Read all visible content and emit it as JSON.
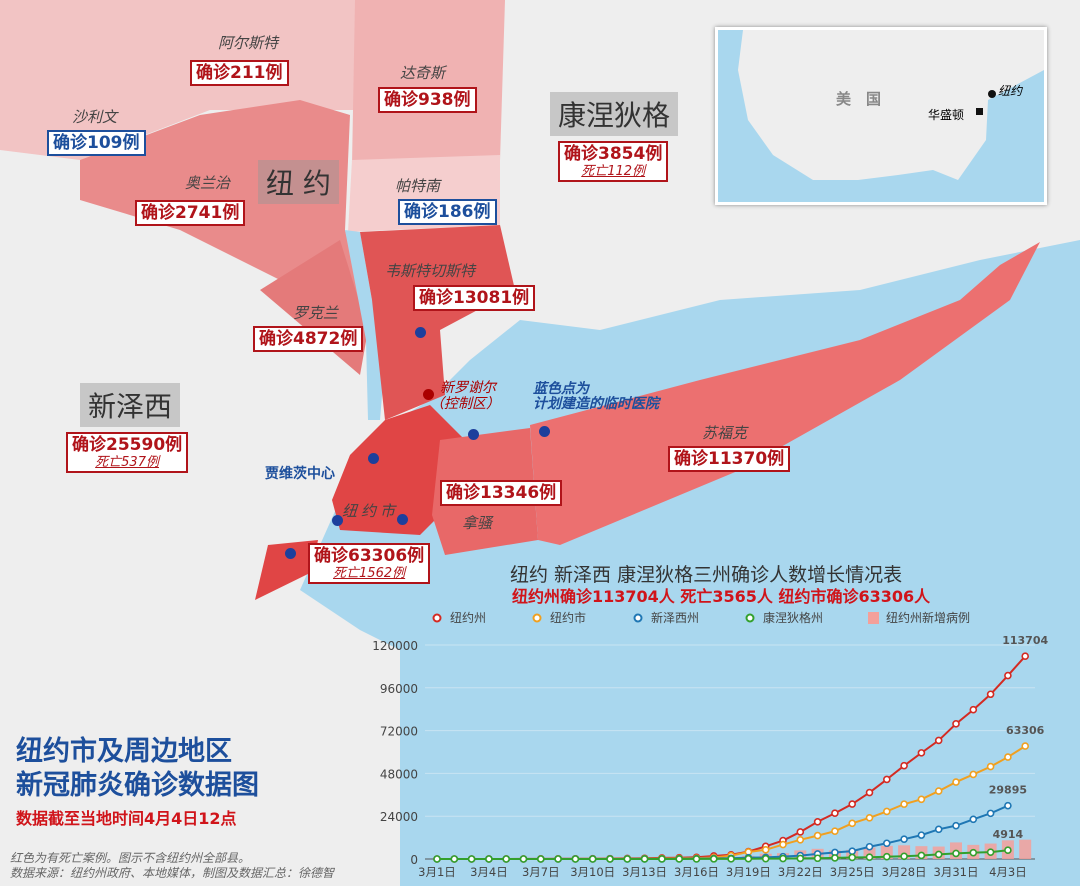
{
  "colors": {
    "water": "#a9d7ee",
    "land": "#eeeeee",
    "deaths_red": "#b0141a",
    "no_death_blue": "#1d4f9c"
  },
  "states": {
    "ny": "纽 约",
    "nj": "新泽西",
    "ct": "康涅狄格"
  },
  "counties": [
    {
      "name": "阿尔斯特",
      "cases": "确诊211例",
      "color": "red"
    },
    {
      "name": "达奇斯",
      "cases": "确诊938例",
      "color": "red"
    },
    {
      "name": "沙利文",
      "cases": "确诊109例",
      "color": "blue"
    },
    {
      "name": "奥兰治",
      "cases": "确诊2741例",
      "color": "red"
    },
    {
      "name": "帕特南",
      "cases": "确诊186例",
      "color": "blue"
    },
    {
      "name": "韦斯特切斯特",
      "cases": "确诊13081例",
      "color": "red"
    },
    {
      "name": "罗克兰",
      "cases": "确诊4872例",
      "color": "red"
    },
    {
      "name": "苏福克",
      "cases": "确诊11370例",
      "color": "red"
    },
    {
      "name": "拿骚",
      "cases": "确诊13346例",
      "color": "red"
    },
    {
      "name": "纽约市",
      "cases": "确诊63306例",
      "deaths": "死亡1562例",
      "color": "red"
    }
  ],
  "nj": {
    "cases": "确诊25590例",
    "deaths": "死亡537例"
  },
  "ct": {
    "cases": "确诊3854例",
    "deaths": "死亡112例"
  },
  "annotations": {
    "new_rochelle": "新罗谢尔",
    "new_rochelle_sub": "（控制区）",
    "blue_dots_1": "蓝色点为",
    "blue_dots_2": "计划建造的临时医院",
    "javits": "贾维茨中心"
  },
  "inset": {
    "country": "美　国",
    "ny": "纽约",
    "dc": "华盛顿"
  },
  "title": {
    "line1": "纽约市及周边地区",
    "line2": "新冠肺炎确诊数据图",
    "date": "数据截至当地时间4月4日12点"
  },
  "footnote": {
    "line1": "红色为有死亡案例。图示不含纽约州全部县。",
    "line2": "数据来源：纽约州政府、本地媒体，制图及数据汇总：徐德智"
  },
  "chart_data": {
    "type": "line",
    "title": "纽约 新泽西 康涅狄格三州确诊人数增长情况表",
    "subtitle": "纽约州确诊113704人 死亡3565人 纽约市确诊63306人",
    "ylim": [
      0,
      120000
    ],
    "yticks": [
      "0",
      "24000",
      "48000",
      "72000",
      "96000",
      "120000"
    ],
    "xticks": [
      "3月1日",
      "3月4日",
      "3月7日",
      "3月10日",
      "3月13日",
      "3月16日",
      "3月19日",
      "3月22日",
      "3月25日",
      "3月28日",
      "3月31日",
      "4月3日"
    ],
    "x_start": "3月1日",
    "grid": true,
    "legend_placement": "top",
    "series": [
      {
        "name": "纽约州",
        "color": "#d42a22",
        "end_label": "113704",
        "values": [
          1,
          1,
          2,
          11,
          22,
          44,
          89,
          106,
          142,
          173,
          217,
          326,
          421,
          610,
          732,
          950,
          1700,
          2382,
          4152,
          7102,
          10356,
          15168,
          20875,
          25665,
          30811,
          37258,
          44635,
          52318,
          59513,
          66497,
          75795,
          83712,
          92381,
          102863,
          113704
        ]
      },
      {
        "name": "纽约市",
        "color": "#f0a020",
        "end_label": "63306",
        "values": [
          0,
          0,
          1,
          1,
          4,
          5,
          12,
          13,
          19,
          36,
          53,
          95,
          154,
          269,
          329,
          463,
          814,
          1871,
          3954,
          5151,
          8115,
          10764,
          13119,
          15597,
          20011,
          23112,
          26697,
          30765,
          33474,
          38087,
          43139,
          47439,
          51809,
          57159,
          63306
        ]
      },
      {
        "name": "新泽西州",
        "color": "#1f77b4",
        "end_label": "29895",
        "values": [
          0,
          0,
          0,
          1,
          2,
          4,
          6,
          6,
          11,
          15,
          23,
          29,
          50,
          69,
          98,
          178,
          267,
          427,
          742,
          890,
          1327,
          1914,
          2844,
          3675,
          4402,
          6876,
          8825,
          11124,
          13386,
          16636,
          18696,
          22255,
          25590,
          29895
        ]
      },
      {
        "name": "康涅狄格州",
        "color": "#33a02c",
        "end_label": "4914",
        "values": [
          0,
          0,
          0,
          0,
          0,
          0,
          0,
          1,
          1,
          2,
          3,
          5,
          11,
          20,
          26,
          41,
          68,
          96,
          159,
          194,
          223,
          327,
          415,
          618,
          875,
          1012,
          1291,
          1524,
          1993,
          2571,
          3128,
          3557,
          3824,
          4914
        ]
      }
    ],
    "bars": {
      "name": "纽约州新增病例",
      "color": "#f4a09a",
      "values": [
        0,
        0,
        1,
        9,
        11,
        22,
        45,
        17,
        36,
        31,
        44,
        109,
        95,
        189,
        122,
        218,
        750,
        682,
        1770,
        2950,
        3254,
        4812,
        5707,
        4790,
        5146,
        6447,
        7377,
        7683,
        7195,
        6984,
        9298,
        7917,
        8669,
        10482,
        10841
      ]
    }
  }
}
